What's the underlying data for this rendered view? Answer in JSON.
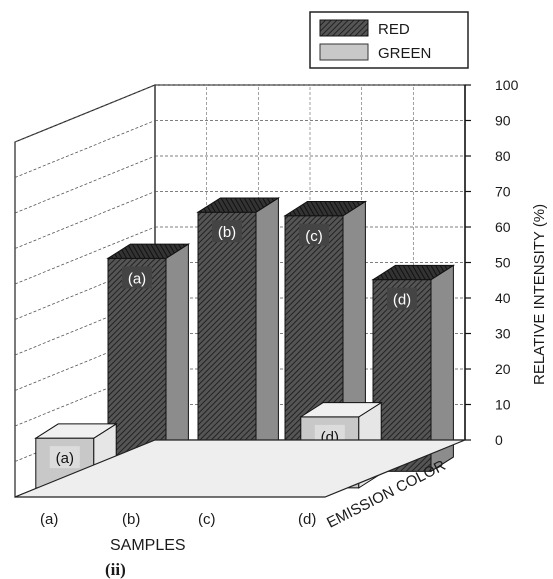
{
  "panel_label": "(ii)",
  "chart_data": {
    "type": "bar",
    "projection": "3d",
    "categories": [
      "(a)",
      "(b)",
      "(c)",
      "(d)"
    ],
    "series": [
      {
        "name": "RED",
        "values": [
          60,
          73,
          72,
          54
        ],
        "bar_labels": [
          "(a)",
          "(b)",
          "(c)",
          "(d)"
        ],
        "color": "#3a3a3a",
        "pattern": "diagonal-hatch"
      },
      {
        "name": "GREEN",
        "values": [
          14,
          8,
          9,
          20
        ],
        "bar_labels": [
          "(a)",
          "(b)",
          "(c)",
          "(d)"
        ],
        "color": "#c8c8c8",
        "pattern": "solid"
      }
    ],
    "xlabel": "SAMPLES",
    "depth_label": "EMISSION COLOR",
    "ylabel": "RELATIVE INTENSITY (%)",
    "ylim": [
      0,
      100
    ],
    "yticks": [
      0,
      10,
      20,
      30,
      40,
      50,
      60,
      70,
      80,
      90,
      100
    ],
    "grid": true,
    "legend_position": "top-right"
  }
}
